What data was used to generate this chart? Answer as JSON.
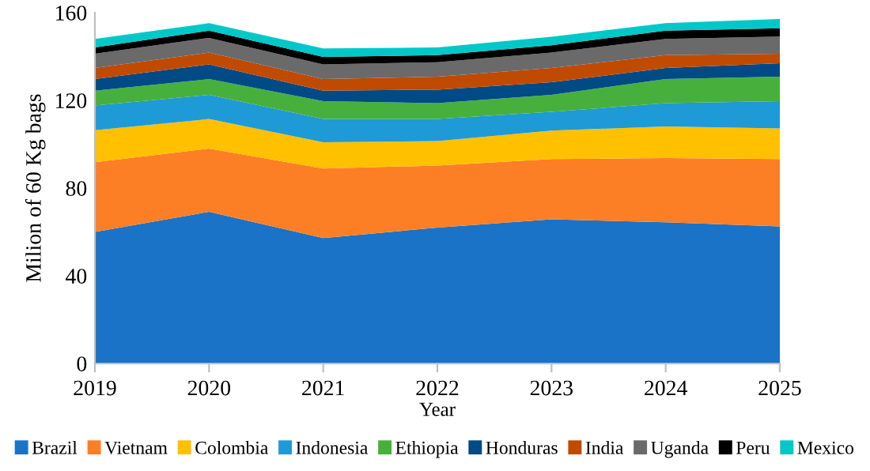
{
  "chart_data": {
    "type": "area",
    "stacked": true,
    "xlabel": "Year",
    "ylabel": "Milion of 60 Kg bags",
    "x": [
      2019,
      2020,
      2021,
      2022,
      2023,
      2024,
      2025
    ],
    "xlim": [
      2019,
      2025
    ],
    "xticks": [
      2019,
      2020,
      2021,
      2022,
      2023,
      2024,
      2025
    ],
    "ylim": [
      0,
      160
    ],
    "yticks": [
      0,
      40,
      80,
      120,
      160
    ],
    "grid": false,
    "legend": "bottom",
    "series": [
      {
        "name": "Brazil",
        "color": "#1a73c7",
        "values": [
          60,
          69.2,
          57.2,
          62,
          65.8,
          64.4,
          62.5
        ]
      },
      {
        "name": "Vietnam",
        "color": "#fd7f25",
        "values": [
          31.8,
          28.8,
          31.7,
          28.3,
          27.4,
          29.3,
          30.7
        ]
      },
      {
        "name": "Colombia",
        "color": "#ffc000",
        "values": [
          14.6,
          13.5,
          12,
          11.1,
          13,
          14.4,
          14
        ]
      },
      {
        "name": "Indonesia",
        "color": "#1e9ad6",
        "values": [
          11.3,
          11,
          10.6,
          10.1,
          8.6,
          10.6,
          12.4
        ]
      },
      {
        "name": "Ethiopia",
        "color": "#47b03c",
        "values": [
          6.7,
          7.2,
          8.1,
          7.2,
          7.7,
          11,
          11.2
        ]
      },
      {
        "name": "Honduras",
        "color": "#004a86",
        "values": [
          5.3,
          6.7,
          4.8,
          6.2,
          5.8,
          5.1,
          6.1
        ]
      },
      {
        "name": "India",
        "color": "#c04a00",
        "values": [
          5.1,
          5.4,
          5.3,
          5.9,
          6.5,
          5.8,
          4.4
        ]
      },
      {
        "name": "Uganda",
        "color": "#6a6a6a",
        "values": [
          6.5,
          6.7,
          6.7,
          6.6,
          7,
          7.4,
          7.8
        ]
      },
      {
        "name": "Peru",
        "color": "#000000",
        "values": [
          2.8,
          3.3,
          3.4,
          3.2,
          3.3,
          3.8,
          3.8
        ]
      },
      {
        "name": "Mexico",
        "color": "#00c8c8",
        "values": [
          3.9,
          3.4,
          3.9,
          3.5,
          3.9,
          3.4,
          4.2
        ]
      }
    ]
  }
}
